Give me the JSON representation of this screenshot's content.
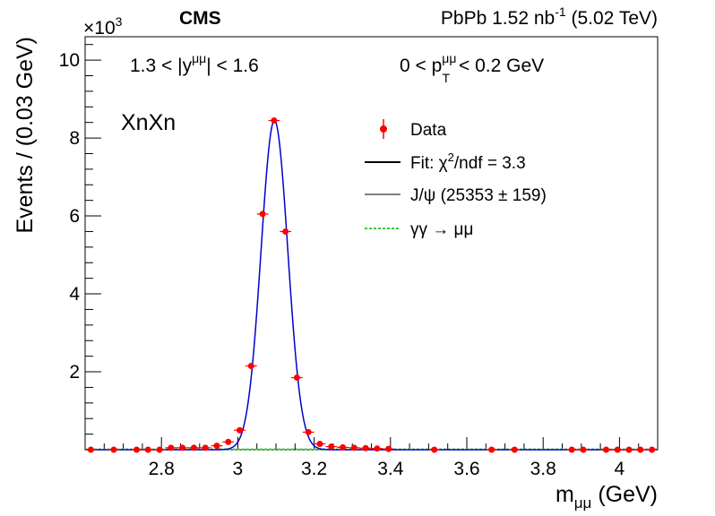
{
  "chart_data": {
    "type": "scatter",
    "experiment": "CMS",
    "luminosity_label": "PbPb 1.52 nb",
    "luminosity_sup": "-1",
    "energy_label": "(5.02 TeV)",
    "exponent_base": "×10",
    "exponent_power": "3",
    "category": "XnXn",
    "rapidity_cut": {
      "pre": "1.3 < |y",
      "sup": "μμ",
      "post": "| < 1.6"
    },
    "pt_cut": {
      "pre": "0 < p",
      "sup": "μμ",
      "sub": "T",
      "post": "< 0.2 GeV"
    },
    "xlabel": {
      "main": "m",
      "sub": "μμ",
      "unit": "(GeV)"
    },
    "ylabel": "Events / (0.03 GeV)",
    "xlim": [
      2.6,
      4.1
    ],
    "ylim": [
      0,
      10.6
    ],
    "xticks": [
      2.8,
      3,
      3.2,
      3.4,
      3.6,
      3.8,
      4
    ],
    "xtick_labels": [
      "2.8",
      "3",
      "3.2",
      "3.4",
      "3.6",
      "3.8",
      "4"
    ],
    "yticks": [
      2,
      4,
      6,
      8,
      10
    ],
    "ytick_labels": [
      "2",
      "4",
      "6",
      "8",
      "10"
    ],
    "legend": {
      "data_label": "Data",
      "fit_label": {
        "pre": "Fit: χ",
        "sup": "2",
        "post": "/ndf = 3.3"
      },
      "jpsi_label": "J/ψ (25353 ± 159)",
      "gg_label": "γγ → μμ"
    },
    "colors": {
      "data": "#ff0000",
      "fit": "#000000",
      "jpsi": "#0000cc",
      "gg": "#33cc33"
    },
    "data_points": {
      "x": [
        2.615,
        2.675,
        2.735,
        2.765,
        2.795,
        2.825,
        2.855,
        2.885,
        2.915,
        2.945,
        2.975,
        3.005,
        3.035,
        3.065,
        3.095,
        3.125,
        3.155,
        3.185,
        3.215,
        3.245,
        3.275,
        3.305,
        3.335,
        3.365,
        3.395,
        3.515,
        3.665,
        3.725,
        3.875,
        3.905,
        3.965,
        3.995,
        4.025,
        4.055,
        4.085
      ],
      "y": [
        0.0,
        0.0,
        0.0,
        0.0,
        0.0,
        0.05,
        0.05,
        0.05,
        0.05,
        0.1,
        0.2,
        0.5,
        2.15,
        6.05,
        8.45,
        5.6,
        1.85,
        0.45,
        0.15,
        0.08,
        0.06,
        0.05,
        0.04,
        0.03,
        0.02,
        0.0,
        0.0,
        0.0,
        0.0,
        0.0,
        0.0,
        0.0,
        0.0,
        0.0,
        0.0
      ]
    },
    "fit_model": {
      "peak_mass": 3.096,
      "peak_height": 8.45,
      "sigma": 0.035,
      "x_range": [
        2.6,
        4.1
      ]
    },
    "gg_background_level": 0.01
  }
}
